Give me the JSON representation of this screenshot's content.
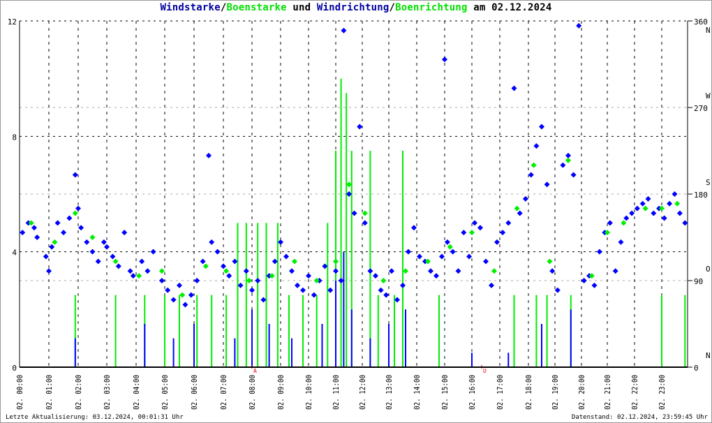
{
  "title": {
    "part1": "Windstarke",
    "sep1": "/",
    "part2": "Boenstarke",
    "mid": " und ",
    "part3": "Windrichtung",
    "sep2": "/",
    "part4": "Boenrichtung",
    "tail": " am 02.12.2024"
  },
  "footer": {
    "last_update": "Letzte Aktualisierung: 03.12.2024, 00:01:31 Uhr",
    "data_state": "Datenstand: 02.12.2024, 23:59:45 Uhr"
  },
  "chart_data": {
    "type": "scatter",
    "title": "Windstarke/Boenstarke und Windrichtung/Boenrichtung am 02.12.2024",
    "x_labels": [
      "02. 00:00",
      "02. 01:00",
      "02. 02:00",
      "02. 03:00",
      "02. 04:00",
      "02. 05:00",
      "02. 06:00",
      "02. 07:00",
      "02. 08:00",
      "02. 09:00",
      "02. 10:00",
      "02. 11:00",
      "02. 12:00",
      "02. 13:00",
      "02. 14:00",
      "02. 15:00",
      "02. 16:00",
      "02. 17:00",
      "02. 18:00",
      "02. 19:00",
      "02. 20:00",
      "02. 21:00",
      "02. 22:00",
      "02. 23:00"
    ],
    "left_axis": {
      "ylim": [
        0,
        12
      ],
      "ticks": [
        "0",
        "4",
        "8",
        "12"
      ]
    },
    "right_axis": {
      "ylim": [
        0,
        360
      ],
      "ticks": [
        "0",
        "90",
        "180",
        "270",
        "360"
      ],
      "compass": [
        "N",
        "O",
        "S",
        "W",
        "N"
      ]
    },
    "markers": [
      {
        "hour": 8.0,
        "label": "A"
      },
      {
        "hour": 16.35,
        "label": "U"
      }
    ],
    "colors": {
      "wind": "#0000ff",
      "gust": "#00ee00"
    },
    "series": [
      {
        "name": "Windrichtung",
        "kind": "direction",
        "color": "#0000ff",
        "points": [
          [
            0.1,
            140
          ],
          [
            0.3,
            150
          ],
          [
            0.5,
            145
          ],
          [
            0.6,
            135
          ],
          [
            0.9,
            115
          ],
          [
            1.0,
            100
          ],
          [
            1.1,
            125
          ],
          [
            1.3,
            150
          ],
          [
            1.5,
            140
          ],
          [
            1.7,
            155
          ],
          [
            1.9,
            200
          ],
          [
            2.0,
            165
          ],
          [
            2.1,
            145
          ],
          [
            2.3,
            130
          ],
          [
            2.5,
            120
          ],
          [
            2.7,
            110
          ],
          [
            2.9,
            130
          ],
          [
            3.0,
            125
          ],
          [
            3.2,
            115
          ],
          [
            3.4,
            105
          ],
          [
            3.6,
            140
          ],
          [
            3.8,
            100
          ],
          [
            3.9,
            95
          ],
          [
            4.2,
            110
          ],
          [
            4.4,
            100
          ],
          [
            4.6,
            120
          ],
          [
            4.9,
            90
          ],
          [
            5.1,
            80
          ],
          [
            5.3,
            70
          ],
          [
            5.5,
            85
          ],
          [
            5.7,
            65
          ],
          [
            5.9,
            75
          ],
          [
            6.1,
            90
          ],
          [
            6.3,
            110
          ],
          [
            6.5,
            220
          ],
          [
            6.6,
            130
          ],
          [
            6.8,
            120
          ],
          [
            7.0,
            105
          ],
          [
            7.2,
            95
          ],
          [
            7.4,
            110
          ],
          [
            7.6,
            85
          ],
          [
            7.8,
            100
          ],
          [
            8.0,
            80
          ],
          [
            8.2,
            90
          ],
          [
            8.4,
            70
          ],
          [
            8.6,
            95
          ],
          [
            8.8,
            110
          ],
          [
            9.0,
            130
          ],
          [
            9.2,
            115
          ],
          [
            9.4,
            100
          ],
          [
            9.6,
            85
          ],
          [
            9.8,
            80
          ],
          [
            10.0,
            95
          ],
          [
            10.2,
            75
          ],
          [
            10.4,
            90
          ],
          [
            10.6,
            105
          ],
          [
            10.8,
            80
          ],
          [
            11.0,
            100
          ],
          [
            11.2,
            90
          ],
          [
            11.3,
            350
          ],
          [
            11.5,
            180
          ],
          [
            11.7,
            160
          ],
          [
            11.9,
            250
          ],
          [
            12.1,
            150
          ],
          [
            12.3,
            100
          ],
          [
            12.5,
            95
          ],
          [
            12.7,
            80
          ],
          [
            12.9,
            75
          ],
          [
            13.1,
            100
          ],
          [
            13.3,
            70
          ],
          [
            13.5,
            85
          ],
          [
            13.7,
            120
          ],
          [
            13.9,
            145
          ],
          [
            14.1,
            115
          ],
          [
            14.3,
            110
          ],
          [
            14.5,
            100
          ],
          [
            14.7,
            95
          ],
          [
            14.9,
            115
          ],
          [
            15.0,
            320
          ],
          [
            15.1,
            130
          ],
          [
            15.3,
            120
          ],
          [
            15.5,
            100
          ],
          [
            15.7,
            140
          ],
          [
            15.9,
            115
          ],
          [
            16.1,
            150
          ],
          [
            16.3,
            145
          ],
          [
            16.5,
            110
          ],
          [
            16.7,
            85
          ],
          [
            16.9,
            130
          ],
          [
            17.1,
            140
          ],
          [
            17.3,
            150
          ],
          [
            17.5,
            290
          ],
          [
            17.7,
            160
          ],
          [
            17.9,
            175
          ],
          [
            18.1,
            200
          ],
          [
            18.3,
            230
          ],
          [
            18.5,
            250
          ],
          [
            18.7,
            190
          ],
          [
            18.9,
            100
          ],
          [
            19.1,
            80
          ],
          [
            19.3,
            210
          ],
          [
            19.5,
            220
          ],
          [
            19.7,
            200
          ],
          [
            19.9,
            355
          ],
          [
            20.1,
            90
          ],
          [
            20.3,
            95
          ],
          [
            20.5,
            85
          ],
          [
            20.7,
            120
          ],
          [
            20.9,
            140
          ],
          [
            21.1,
            150
          ],
          [
            21.3,
            100
          ],
          [
            21.5,
            130
          ],
          [
            21.7,
            155
          ],
          [
            21.9,
            160
          ],
          [
            22.1,
            165
          ],
          [
            22.3,
            170
          ],
          [
            22.5,
            175
          ],
          [
            22.7,
            160
          ],
          [
            22.9,
            165
          ],
          [
            23.1,
            155
          ],
          [
            23.3,
            170
          ],
          [
            23.5,
            180
          ],
          [
            23.7,
            160
          ],
          [
            23.9,
            150
          ]
        ]
      },
      {
        "name": "Boenrichtung",
        "kind": "direction",
        "color": "#00ee00",
        "points": [
          [
            0.4,
            150
          ],
          [
            1.2,
            130
          ],
          [
            1.9,
            160
          ],
          [
            2.5,
            135
          ],
          [
            3.3,
            110
          ],
          [
            4.1,
            95
          ],
          [
            4.9,
            100
          ],
          [
            5.6,
            75
          ],
          [
            6.4,
            105
          ],
          [
            7.1,
            100
          ],
          [
            7.9,
            90
          ],
          [
            8.7,
            95
          ],
          [
            9.5,
            110
          ],
          [
            10.3,
            90
          ],
          [
            11.0,
            110
          ],
          [
            11.5,
            190
          ],
          [
            12.1,
            160
          ],
          [
            12.8,
            90
          ],
          [
            13.6,
            100
          ],
          [
            14.4,
            110
          ],
          [
            15.2,
            125
          ],
          [
            16.0,
            140
          ],
          [
            16.8,
            100
          ],
          [
            17.6,
            165
          ],
          [
            18.2,
            210
          ],
          [
            18.8,
            110
          ],
          [
            19.5,
            215
          ],
          [
            20.4,
            95
          ],
          [
            21.0,
            140
          ],
          [
            21.6,
            150
          ],
          [
            22.4,
            165
          ],
          [
            23.0,
            165
          ],
          [
            23.6,
            170
          ]
        ]
      },
      {
        "name": "Boenstarke",
        "kind": "strength",
        "color": "#00ee00",
        "bars": [
          [
            1.9,
            2.5
          ],
          [
            3.3,
            2.5
          ],
          [
            4.3,
            2.5
          ],
          [
            5.0,
            2.5
          ],
          [
            5.5,
            2.5
          ],
          [
            6.1,
            2.5
          ],
          [
            6.6,
            2.5
          ],
          [
            7.1,
            2.5
          ],
          [
            7.5,
            5
          ],
          [
            7.8,
            5
          ],
          [
            8.2,
            5
          ],
          [
            8.5,
            5
          ],
          [
            8.9,
            5
          ],
          [
            9.3,
            2.5
          ],
          [
            9.8,
            2.5
          ],
          [
            10.3,
            2.5
          ],
          [
            10.7,
            5
          ],
          [
            11.0,
            7.5
          ],
          [
            11.2,
            10
          ],
          [
            11.4,
            9.5
          ],
          [
            11.6,
            7.5
          ],
          [
            12.3,
            7.5
          ],
          [
            12.6,
            2.5
          ],
          [
            13.2,
            2.5
          ],
          [
            13.5,
            7.5
          ],
          [
            14.8,
            2.5
          ],
          [
            17.5,
            2.5
          ],
          [
            18.3,
            2.5
          ],
          [
            18.7,
            2.5
          ],
          [
            19.6,
            2.5
          ],
          [
            23.0,
            2.5
          ],
          [
            23.9,
            2.5
          ]
        ]
      },
      {
        "name": "Windstarke",
        "kind": "strength",
        "color": "#0000ff",
        "bars": [
          [
            1.9,
            1
          ],
          [
            4.3,
            1.5
          ],
          [
            5.3,
            1
          ],
          [
            6.0,
            1.5
          ],
          [
            7.4,
            1
          ],
          [
            8.0,
            2
          ],
          [
            8.6,
            1.5
          ],
          [
            9.4,
            1
          ],
          [
            10.5,
            1.5
          ],
          [
            11.0,
            3
          ],
          [
            11.3,
            4
          ],
          [
            11.6,
            2
          ],
          [
            12.3,
            1
          ],
          [
            13.0,
            1.5
          ],
          [
            13.6,
            2
          ],
          [
            16.0,
            0.5
          ],
          [
            17.3,
            0.5
          ],
          [
            18.5,
            1.5
          ],
          [
            19.6,
            2
          ]
        ]
      }
    ]
  }
}
